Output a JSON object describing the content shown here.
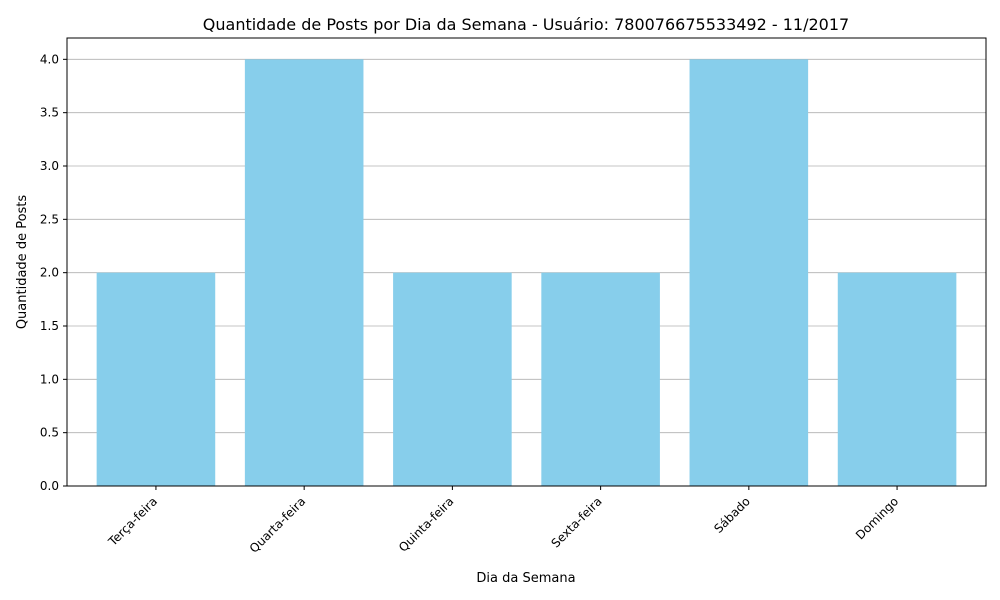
{
  "chart_data": {
    "type": "bar",
    "title": "Quantidade de Posts por Dia da Semana - Usuário: 780076675533492 - 11/2017",
    "xlabel": "Dia da Semana",
    "ylabel": "Quantidade de Posts",
    "categories": [
      "Terça-feira",
      "Quarta-feira",
      "Quinta-feira",
      "Sexta-feira",
      "Sábado",
      "Domingo"
    ],
    "values": [
      2,
      4,
      2,
      2,
      4,
      2
    ],
    "ylim": [
      0,
      4.2
    ],
    "yticks": [
      "0.0",
      "0.5",
      "1.0",
      "1.5",
      "2.0",
      "2.5",
      "3.0",
      "3.5",
      "4.0"
    ],
    "grid": "y-axis",
    "bar_color": "#87ceeb",
    "legend": "none"
  }
}
